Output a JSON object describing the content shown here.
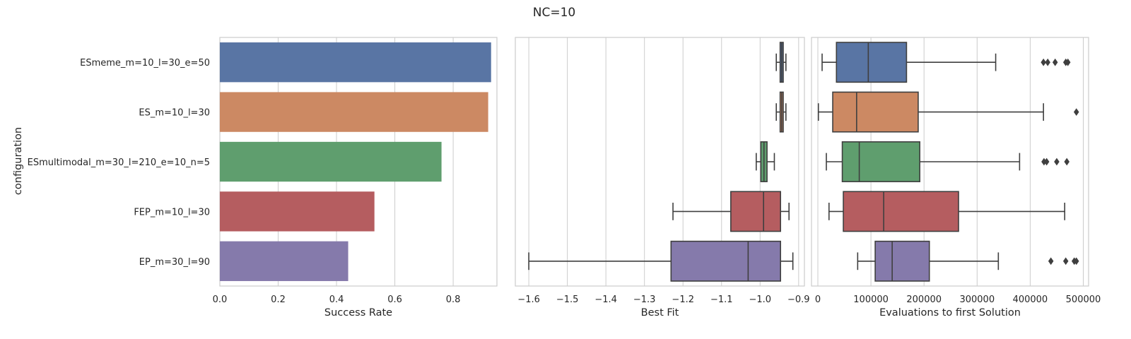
{
  "chart_data": {
    "title": "NC=10",
    "categories": [
      "ESmeme_m=10_l=30_e=50",
      "ES_m=10_l=30",
      "ESmultimodal_m=30_l=210_e=10_n=5",
      "FEP_m=10_l=30",
      "EP_m=30_l=90"
    ],
    "colors": [
      "#5975a4",
      "#cc8963",
      "#5f9e6e",
      "#b55d60",
      "#857aab"
    ],
    "ylabel": "configuration",
    "panels": [
      {
        "type": "bar",
        "xlabel": "Success Rate",
        "xlim": [
          0,
          0.95
        ],
        "xticks": [
          0.0,
          0.2,
          0.4,
          0.6,
          0.8
        ],
        "xtick_labels": [
          "0.0",
          "0.2",
          "0.4",
          "0.6",
          "0.8"
        ],
        "grid": true,
        "values": [
          0.93,
          0.92,
          0.76,
          0.53,
          0.44
        ]
      },
      {
        "type": "box",
        "xlabel": "Best Fit",
        "xlim": [
          -1.635,
          -0.885
        ],
        "xticks": [
          -1.6,
          -1.5,
          -1.4,
          -1.3,
          -1.2,
          -1.1,
          -1.0,
          -0.9
        ],
        "xtick_labels": [
          "−1.6",
          "−1.5",
          "−1.4",
          "−1.3",
          "−1.2",
          "−1.1",
          "−1.0",
          "−0.9"
        ],
        "grid": true,
        "boxes": [
          {
            "whislo": -0.958,
            "q1": -0.948,
            "med": -0.944,
            "q3": -0.94,
            "whishi": -0.933,
            "fliers": []
          },
          {
            "whislo": -0.958,
            "q1": -0.948,
            "med": -0.944,
            "q3": -0.94,
            "whishi": -0.933,
            "fliers": []
          },
          {
            "whislo": -1.01,
            "q1": -0.998,
            "med": -0.99,
            "q3": -0.982,
            "whishi": -0.963,
            "fliers": []
          },
          {
            "whislo": -1.226,
            "q1": -1.076,
            "med": -0.991,
            "q3": -0.947,
            "whishi": -0.925,
            "fliers": []
          },
          {
            "whislo": -1.6,
            "q1": -1.231,
            "med": -1.031,
            "q3": -0.947,
            "whishi": -0.915,
            "fliers": []
          }
        ]
      },
      {
        "type": "box",
        "xlabel": "Evaluations to first Solution",
        "xlim": [
          -12000,
          510000
        ],
        "xticks": [
          0,
          100000,
          200000,
          300000,
          400000,
          500000
        ],
        "xtick_labels": [
          "0",
          "100000",
          "200000",
          "300000",
          "400000",
          "500000"
        ],
        "grid": true,
        "boxes": [
          {
            "whislo": 8000,
            "q1": 35000,
            "med": 95000,
            "q3": 167000,
            "whishi": 335000,
            "fliers": [
              425000,
              433000,
              447000,
              467000,
              471000
            ]
          },
          {
            "whislo": 1000,
            "q1": 28000,
            "med": 73000,
            "q3": 189000,
            "whishi": 425000,
            "fliers": [
              487000
            ]
          },
          {
            "whislo": 16000,
            "q1": 46000,
            "med": 78000,
            "q3": 192000,
            "whishi": 380000,
            "fliers": [
              426000,
              431000,
              450000,
              469000
            ]
          },
          {
            "whislo": 21000,
            "q1": 48000,
            "med": 124000,
            "q3": 265000,
            "whishi": 465000,
            "fliers": []
          },
          {
            "whislo": 75000,
            "q1": 108000,
            "med": 140000,
            "q3": 210000,
            "whishi": 340000,
            "fliers": [
              439000,
              467000,
              483000,
              487000
            ]
          }
        ]
      }
    ]
  }
}
